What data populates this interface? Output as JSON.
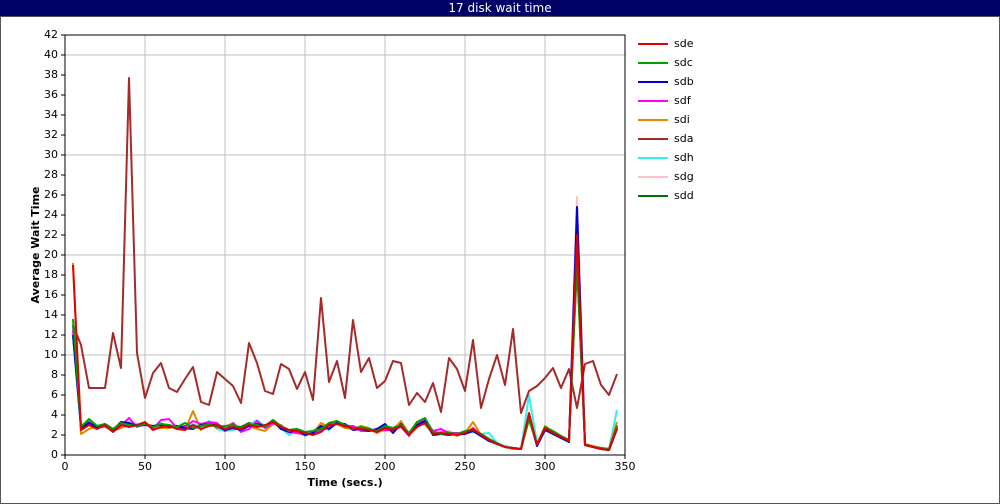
{
  "chart_data": {
    "type": "line",
    "title": "17 disk wait time",
    "x_label": "Time (secs.)",
    "y_label": "Average Wait Time",
    "xlim": [
      0,
      350
    ],
    "xticks": [
      0,
      50,
      100,
      150,
      200,
      250,
      300,
      350
    ],
    "ylim": [
      0,
      42
    ],
    "yticks": [
      0,
      2,
      4,
      6,
      8,
      10,
      12,
      14,
      16,
      18,
      20,
      22,
      24,
      26,
      28,
      30,
      32,
      34,
      36,
      38,
      40,
      42
    ],
    "grid_xticks": [
      50,
      100,
      150,
      200,
      250,
      300
    ],
    "grid_yticks": [
      10,
      20,
      30,
      40
    ],
    "x": [
      5,
      10,
      15,
      20,
      25,
      30,
      35,
      40,
      45,
      50,
      55,
      60,
      65,
      70,
      75,
      80,
      85,
      90,
      95,
      100,
      105,
      110,
      115,
      120,
      125,
      130,
      135,
      140,
      145,
      150,
      155,
      160,
      165,
      170,
      175,
      180,
      185,
      190,
      195,
      200,
      205,
      210,
      215,
      220,
      225,
      230,
      235,
      240,
      245,
      250,
      255,
      260,
      265,
      270,
      275,
      280,
      285,
      290,
      295,
      300,
      305,
      310,
      315,
      320,
      325,
      330,
      335,
      340,
      345
    ],
    "series": [
      {
        "name": "sde",
        "color": "#e00000",
        "values": [
          19,
          2.5,
          3.0,
          2.6,
          3.0,
          2.3,
          3.0,
          2.8,
          3.0,
          3.3,
          2.5,
          2.8,
          2.9,
          2.6,
          2.5,
          3.0,
          2.6,
          2.9,
          3.0,
          2.6,
          2.8,
          2.6,
          3.0,
          2.8,
          3.0,
          3.3,
          2.8,
          2.5,
          2.4,
          2.2,
          2.0,
          2.3,
          3.0,
          3.1,
          2.9,
          2.7,
          2.6,
          2.5,
          2.3,
          2.7,
          2.5,
          2.9,
          2.0,
          2.8,
          3.2,
          2.1,
          2.2,
          2.1,
          2.0,
          2.2,
          2.6,
          2.0,
          1.5,
          1.1,
          0.8,
          0.7,
          0.6,
          4.2,
          1.0,
          2.7,
          2.2,
          1.8,
          1.4,
          22,
          1.0,
          0.8,
          0.6,
          0.5,
          2.7
        ]
      },
      {
        "name": "sdc",
        "color": "#00a000",
        "values": [
          13.6,
          2.8,
          3.6,
          2.9,
          3.1,
          2.6,
          3.2,
          3.0,
          2.9,
          3.1,
          2.8,
          3.1,
          3.0,
          2.8,
          3.2,
          2.7,
          2.9,
          3.1,
          2.8,
          2.9,
          3.0,
          2.7,
          3.1,
          3.0,
          2.8,
          3.5,
          2.9,
          2.4,
          2.6,
          2.3,
          2.4,
          2.6,
          3.2,
          3.4,
          3.0,
          2.6,
          2.8,
          2.6,
          2.4,
          2.9,
          2.7,
          3.0,
          2.2,
          3.3,
          3.7,
          2.3,
          2.1,
          2.2,
          2.1,
          2.4,
          2.5,
          2.1,
          1.6,
          1.2,
          0.8,
          0.7,
          0.6,
          3.6,
          1.1,
          2.8,
          2.4,
          1.9,
          1.5,
          19.5,
          1.1,
          0.8,
          0.7,
          0.6,
          2.9
        ]
      },
      {
        "name": "sdb",
        "color": "#0000d0",
        "values": [
          12,
          2.7,
          3.2,
          2.8,
          3.0,
          2.5,
          3.3,
          3.2,
          2.9,
          3.0,
          2.9,
          3.0,
          2.8,
          2.9,
          2.7,
          2.6,
          3.0,
          3.1,
          2.9,
          2.5,
          2.7,
          2.5,
          2.9,
          3.1,
          2.9,
          3.4,
          2.6,
          2.3,
          2.5,
          2.0,
          2.2,
          2.9,
          2.6,
          3.2,
          3.1,
          2.5,
          2.6,
          2.4,
          2.6,
          3.1,
          2.2,
          3.1,
          2.1,
          3.0,
          3.4,
          2.0,
          2.1,
          2.0,
          2.1,
          2.1,
          2.4,
          1.9,
          1.4,
          1.1,
          0.8,
          0.7,
          0.6,
          3.9,
          0.9,
          2.5,
          2.1,
          1.7,
          1.3,
          24.8,
          1.0,
          0.8,
          0.6,
          0.5,
          2.6
        ]
      },
      {
        "name": "sdf",
        "color": "#ff00ff",
        "values": [
          12.5,
          2.9,
          3.3,
          2.7,
          2.9,
          2.4,
          2.9,
          3.7,
          2.8,
          3.2,
          2.6,
          3.5,
          3.6,
          2.7,
          2.8,
          3.4,
          3.1,
          3.3,
          3.2,
          2.4,
          3.2,
          2.3,
          2.6,
          3.4,
          2.7,
          3.2,
          2.9,
          2.3,
          2.2,
          2.1,
          2.1,
          2.5,
          2.7,
          3.3,
          2.8,
          2.9,
          2.4,
          2.4,
          2.6,
          2.5,
          2.5,
          2.8,
          1.9,
          3.3,
          3.5,
          2.4,
          2.6,
          2.2,
          2.2,
          2.1,
          2.7,
          1.9,
          1.5,
          1.1,
          0.8,
          0.7,
          0.6,
          3.9,
          1.0,
          2.6,
          2.2,
          1.8,
          1.4,
          22.5,
          1.0,
          0.8,
          0.6,
          0.5,
          2.8
        ]
      },
      {
        "name": "sdi",
        "color": "#e08a00",
        "values": [
          19.2,
          2.1,
          2.6,
          2.9,
          2.8,
          2.4,
          2.7,
          3.1,
          2.9,
          3.1,
          2.9,
          2.7,
          2.7,
          2.9,
          2.5,
          4.4,
          2.5,
          3.2,
          2.7,
          2.8,
          3.2,
          2.5,
          2.9,
          2.6,
          2.4,
          3.1,
          3.0,
          2.3,
          2.2,
          2.0,
          2.2,
          3.2,
          2.8,
          3.1,
          2.7,
          2.6,
          2.9,
          2.7,
          2.2,
          2.6,
          2.5,
          3.4,
          2.1,
          3.1,
          3.3,
          2.2,
          2.3,
          2.3,
          1.9,
          2.2,
          3.3,
          2.0,
          1.5,
          1.1,
          0.8,
          0.6,
          0.6,
          3.5,
          1.0,
          2.9,
          2.3,
          1.8,
          1.5,
          20.2,
          1.1,
          0.9,
          0.7,
          0.6,
          3.3
        ]
      },
      {
        "name": "sda",
        "color": "#a52a2a",
        "values": [
          13,
          11,
          6.7,
          6.7,
          6.7,
          12.2,
          8.7,
          37.7,
          10.2,
          5.7,
          8.2,
          9.2,
          6.7,
          6.3,
          7.6,
          8.8,
          5.3,
          5.0,
          8.3,
          7.6,
          6.9,
          5.2,
          11.2,
          9.2,
          6.4,
          6.1,
          9.1,
          8.6,
          6.6,
          8.3,
          5.5,
          15.7,
          7.3,
          9.4,
          5.7,
          13.5,
          8.3,
          9.7,
          6.7,
          7.4,
          9.4,
          9.2,
          5.0,
          6.2,
          5.3,
          7.2,
          4.3,
          9.7,
          8.6,
          6.4,
          11.5,
          4.7,
          7.6,
          10.0,
          7.0,
          12.6,
          4.2,
          6.4,
          6.9,
          7.7,
          8.7,
          6.7,
          8.6,
          4.7,
          9.1,
          9.4,
          7.0,
          6.0,
          8.1
        ]
      },
      {
        "name": "sdh",
        "color": "#33eeee",
        "values": [
          12,
          2.6,
          3.4,
          2.9,
          3.0,
          2.4,
          3.0,
          3.3,
          3.1,
          3.0,
          2.9,
          3.2,
          2.8,
          2.9,
          2.6,
          3.1,
          2.8,
          3.4,
          2.6,
          2.4,
          2.5,
          2.7,
          3.0,
          3.5,
          2.9,
          3.3,
          2.7,
          2.0,
          2.5,
          1.9,
          2.4,
          3.0,
          2.5,
          3.4,
          2.8,
          2.9,
          2.6,
          2.6,
          2.5,
          2.4,
          2.6,
          2.8,
          2.1,
          3.2,
          3.0,
          2.2,
          2.1,
          2.1,
          2.0,
          2.3,
          2.3,
          2.1,
          2.2,
          1.2,
          0.9,
          0.7,
          0.6,
          6.0,
          1.2,
          2.5,
          2.2,
          1.8,
          1.5,
          21.5,
          1.0,
          0.8,
          0.6,
          0.6,
          4.5
        ]
      },
      {
        "name": "sdg",
        "color": "#ffc0c8",
        "values": [
          12.3,
          2.8,
          3.1,
          2.7,
          3.0,
          2.5,
          3.1,
          3.0,
          3.0,
          3.2,
          2.7,
          3.0,
          2.9,
          2.8,
          2.6,
          2.9,
          2.7,
          3.0,
          2.9,
          2.6,
          2.9,
          2.6,
          3.0,
          2.9,
          2.8,
          3.4,
          2.8,
          2.4,
          2.5,
          2.1,
          2.1,
          2.6,
          2.9,
          3.3,
          2.9,
          2.7,
          2.7,
          2.5,
          2.3,
          2.8,
          2.6,
          3.0,
          2.0,
          2.9,
          3.3,
          2.2,
          2.3,
          2.4,
          2.1,
          2.3,
          2.6,
          2.0,
          1.5,
          1.1,
          0.8,
          0.7,
          0.6,
          4.0,
          1.0,
          2.7,
          2.3,
          1.8,
          1.4,
          25.8,
          1.0,
          0.8,
          0.6,
          0.5,
          2.9
        ]
      },
      {
        "name": "sdd",
        "color": "#007000",
        "values": [
          13,
          2.9,
          3.4,
          2.8,
          3.1,
          2.6,
          3.1,
          3.1,
          3.0,
          3.2,
          2.8,
          3.0,
          3.0,
          2.7,
          2.9,
          2.8,
          2.8,
          3.0,
          3.1,
          2.7,
          2.9,
          2.8,
          3.2,
          3.0,
          2.9,
          3.5,
          2.9,
          2.5,
          2.6,
          2.3,
          2.3,
          2.7,
          3.1,
          3.3,
          3.0,
          2.8,
          2.7,
          2.6,
          2.4,
          2.8,
          2.7,
          3.1,
          2.1,
          3.2,
          3.6,
          2.3,
          2.2,
          2.3,
          2.1,
          2.3,
          2.6,
          2.1,
          1.6,
          1.2,
          0.8,
          0.7,
          0.6,
          3.7,
          1.1,
          2.8,
          2.3,
          1.9,
          1.5,
          19.0,
          1.1,
          0.8,
          0.7,
          0.6,
          3.0
        ]
      }
    ]
  }
}
